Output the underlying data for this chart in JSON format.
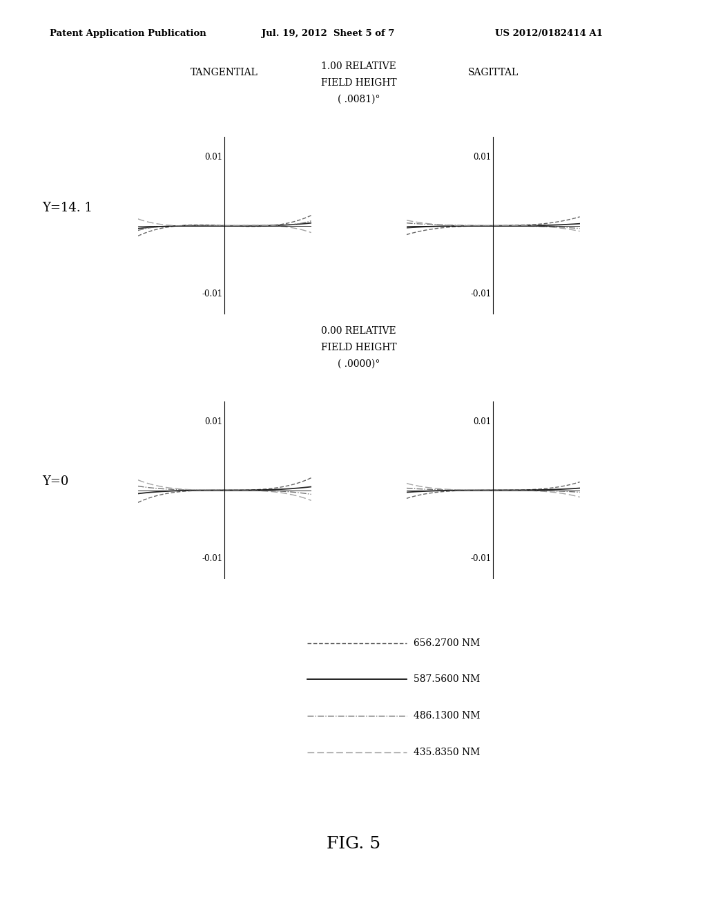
{
  "header_left": "Patent Application Publication",
  "header_center": "Jul. 19, 2012  Sheet 5 of 7",
  "header_right": "US 2012/0182414 A1",
  "fig_label": "FIG. 5",
  "row1_left_label": "TANGENTIAL",
  "row1_center_label1": "1.00 RELATIVE",
  "row1_center_label2": "FIELD HEIGHT",
  "row1_center_label3": "( .0081)°",
  "row1_right_label": "SAGITTAL",
  "row1_y_label": "Y=14. 1",
  "row2_center_label1": "0.00 RELATIVE",
  "row2_center_label2": "FIELD HEIGHT",
  "row2_center_label3": "( .0000)°",
  "row2_y_label": "Y=0",
  "background_color": "#ffffff",
  "legend_entries": [
    {
      "label": "656.2700 NM"
    },
    {
      "label": "587.5600 NM"
    },
    {
      "label": "486.1300 NM"
    },
    {
      "label": "435.8350 NM"
    }
  ]
}
